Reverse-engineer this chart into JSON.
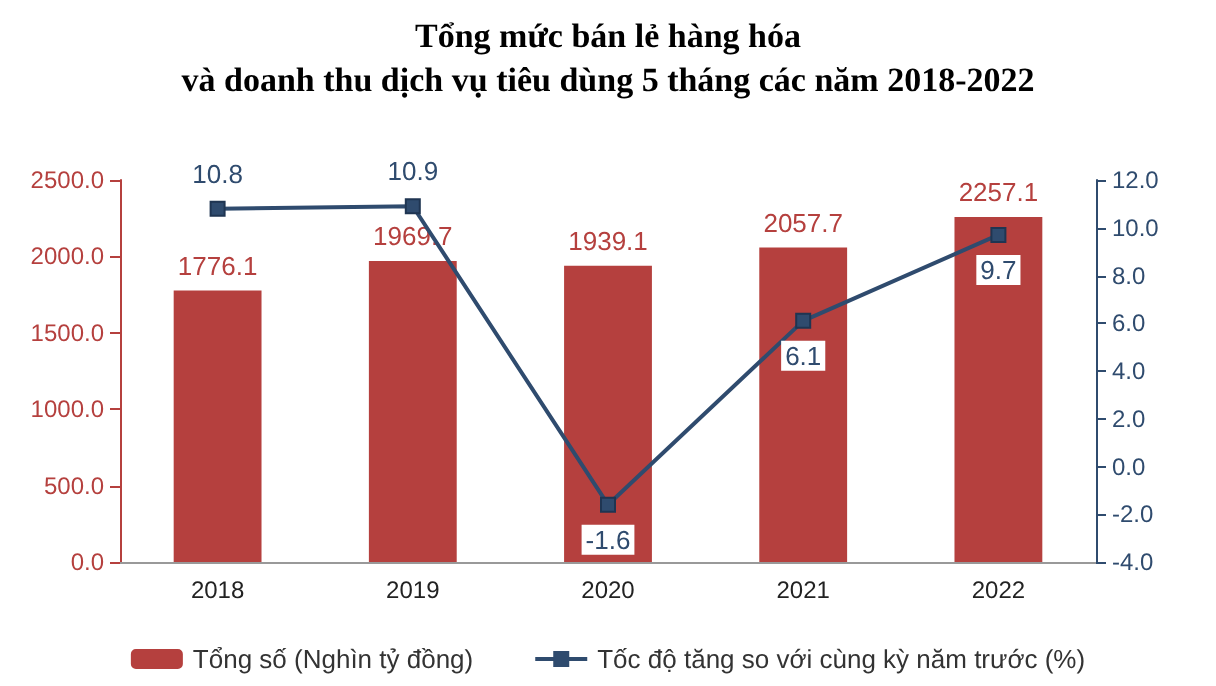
{
  "chart_data": {
    "type": "bar",
    "title": "Tổng mức bán lẻ hàng hóa\nvà doanh thu dịch vụ tiêu dùng 5 tháng các năm 2018-2022",
    "categories": [
      "2018",
      "2019",
      "2020",
      "2021",
      "2022"
    ],
    "series": [
      {
        "name": "Tổng số (Nghìn tỷ đồng)",
        "color": "#b5403e",
        "values": [
          1776.1,
          1969.7,
          1939.1,
          2057.7,
          2257.1
        ]
      },
      {
        "name": "Tốc độ tăng so với cùng kỳ năm trước (%)",
        "type": "line",
        "axis": "y2",
        "color": "#2f4b6e",
        "marker": "square",
        "values": [
          10.8,
          10.9,
          -1.6,
          6.1,
          9.7
        ]
      }
    ],
    "ylim": [
      0,
      2500
    ],
    "yticks": [
      {
        "value": 0,
        "label": "0.0"
      },
      {
        "value": 500,
        "label": "500.0"
      },
      {
        "value": 1000,
        "label": "1000.0"
      },
      {
        "value": 1500,
        "label": "1500.0"
      },
      {
        "value": 2000,
        "label": "2000.0"
      },
      {
        "value": 2500,
        "label": "2500.0"
      }
    ],
    "y2lim": [
      -4,
      12
    ],
    "y2ticks": [
      {
        "value": -4,
        "label": "-4.0"
      },
      {
        "value": -2,
        "label": "-2.0"
      },
      {
        "value": 0,
        "label": "0.0"
      },
      {
        "value": 2,
        "label": "2.0"
      },
      {
        "value": 4,
        "label": "4.0"
      },
      {
        "value": 6,
        "label": "6.0"
      },
      {
        "value": 8,
        "label": "8.0"
      },
      {
        "value": 10,
        "label": "10.0"
      },
      {
        "value": 12,
        "label": "12.0"
      }
    ],
    "data_labels": true,
    "legend": "bottom",
    "grid": false
  }
}
